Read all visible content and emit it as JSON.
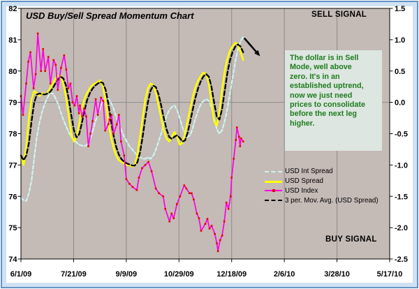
{
  "colors": {
    "frame_border": "#6493c6",
    "frame_band": "#cfe1f2",
    "plot_background": "#c4bab6",
    "gridline": "#8c8c8c",
    "axis": "#000000",
    "note_background": "#dde6e0",
    "note_text": "#1e7c1e",
    "signal_text": "#000000"
  },
  "chart_data": {
    "type": "line",
    "title": "USD Buy/Sell Spread Momentum Chart",
    "x_axis": {
      "labels": [
        "6/1/09",
        "7/21/09",
        "9/9/09",
        "10/29/09",
        "12/18/09",
        "2/6/10",
        "3/28/10",
        "5/17/10"
      ],
      "total_days": 350,
      "days_per_tick": 50
    },
    "y_axis_left": {
      "min": 74,
      "max": 82,
      "ticks": [
        "82",
        "81",
        "80",
        "79",
        "78",
        "77",
        "76",
        "75",
        "74"
      ]
    },
    "y_axis_right": {
      "min": -2.5,
      "max": 1.5,
      "ticks": [
        "1.5",
        "1.0",
        "0.5",
        "0.0",
        "-0.5",
        "-1.0",
        "-1.5",
        "-2.0",
        "-2.5"
      ],
      "zero_gridline": true
    },
    "grid": {
      "vertical": true,
      "horizontal": false
    },
    "legend": {
      "position": "middle-right"
    },
    "series": [
      {
        "name": "USD Int Spread",
        "axis": "left",
        "style": "dashed",
        "color": "#ccf5f0",
        "day_start": 0,
        "day_step": 2.512,
        "values": [
          75.95,
          75.88,
          75.85,
          76.1,
          76.5,
          77.2,
          77.9,
          78.35,
          78.7,
          78.95,
          79.15,
          79.3,
          79.28,
          79.15,
          78.95,
          78.7,
          78.45,
          78.25,
          78.05,
          77.9,
          77.8,
          77.72,
          77.65,
          77.62,
          77.6,
          77.65,
          77.8,
          78.05,
          78.35,
          78.6,
          78.85,
          79.05,
          79.15,
          79.12,
          79.0,
          78.8,
          78.55,
          78.3,
          78.1,
          77.9,
          77.75,
          77.6,
          77.5,
          77.4,
          77.3,
          77.25,
          77.2,
          77.2,
          77.25,
          77.2,
          77.3,
          77.5,
          77.75,
          78.0,
          78.3,
          78.55,
          78.75,
          78.85,
          78.9,
          78.75,
          78.5,
          78.2,
          78.0,
          77.9,
          77.95,
          78.2,
          78.5,
          78.75,
          78.95,
          79.05,
          79.1,
          79.05,
          78.85,
          78.5,
          78.15,
          78.0,
          78.1,
          78.4,
          78.8,
          79.3,
          79.8,
          80.3,
          80.7,
          80.95,
          81.1
        ]
      },
      {
        "name": "USD Spread",
        "axis": "left",
        "style": "solid",
        "color": "#ffff00",
        "day_start": 0,
        "day_step": 2.512,
        "values": [
          77.3,
          77.0,
          77.6,
          78.5,
          79.1,
          79.35,
          79.3,
          79.2,
          79.3,
          79.25,
          79.3,
          79.45,
          79.6,
          79.75,
          79.85,
          79.85,
          79.6,
          79.2,
          78.6,
          78.0,
          77.75,
          77.9,
          78.3,
          78.8,
          79.1,
          79.3,
          79.45,
          79.55,
          79.6,
          79.65,
          79.7,
          79.5,
          79.0,
          78.4,
          77.9,
          77.55,
          77.3,
          77.15,
          77.1,
          77.05,
          77.0,
          77.0,
          76.95,
          77.0,
          77.3,
          77.9,
          78.5,
          79.1,
          79.45,
          79.6,
          79.55,
          79.3,
          78.9,
          78.5,
          78.1,
          77.85,
          77.75,
          77.9,
          78.05,
          77.9,
          77.65,
          77.7,
          78.0,
          78.4,
          78.8,
          79.2,
          79.5,
          79.7,
          79.85,
          79.95,
          79.9,
          79.6,
          79.0,
          78.4,
          78.25,
          78.7,
          79.4,
          80.0,
          80.4,
          80.65,
          80.8,
          80.9,
          80.85,
          80.6,
          80.35
        ]
      },
      {
        "name": "USD Index",
        "axis": "left",
        "style": "solid-with-markers",
        "color": "#ff00dd",
        "marker_color": "#e60000",
        "points": [
          [
            0,
            79.2
          ],
          [
            2,
            78.6
          ],
          [
            5,
            79.6
          ],
          [
            7,
            80.3
          ],
          [
            9,
            80.6
          ],
          [
            12,
            79.45
          ],
          [
            14,
            79.9
          ],
          [
            16,
            81.2
          ],
          [
            19,
            80.0
          ],
          [
            21,
            80.7
          ],
          [
            23,
            80.0
          ],
          [
            26,
            80.45
          ],
          [
            28,
            79.6
          ],
          [
            31,
            80.35
          ],
          [
            33,
            80.2
          ],
          [
            35,
            79.4
          ],
          [
            38,
            80.1
          ],
          [
            41,
            80.5
          ],
          [
            43,
            80.05
          ],
          [
            45,
            79.45
          ],
          [
            47,
            79.6
          ],
          [
            49,
            79.0
          ],
          [
            51,
            78.9
          ],
          [
            53,
            79.2
          ],
          [
            55,
            78.65
          ],
          [
            56,
            78.9
          ],
          [
            58,
            78.55
          ],
          [
            60,
            78.8
          ],
          [
            62,
            78.55
          ],
          [
            64,
            77.6
          ],
          [
            66,
            78.0
          ],
          [
            68,
            78.4
          ],
          [
            71,
            79.1
          ],
          [
            73,
            78.6
          ],
          [
            76,
            79.15
          ],
          [
            78,
            79.05
          ],
          [
            80,
            78.1
          ],
          [
            83,
            78.3
          ],
          [
            84,
            78.45
          ],
          [
            86,
            78.6
          ],
          [
            88,
            78.0
          ],
          [
            91,
            78.3
          ],
          [
            93,
            78.6
          ],
          [
            95,
            77.75
          ],
          [
            98,
            77.3
          ],
          [
            100,
            76.55
          ],
          [
            103,
            76.4
          ],
          [
            106,
            76.3
          ],
          [
            110,
            76.2
          ],
          [
            112,
            76.6
          ],
          [
            115,
            76.9
          ],
          [
            118,
            77.0
          ],
          [
            121,
            77.1
          ],
          [
            124,
            76.8
          ],
          [
            128,
            76.25
          ],
          [
            131,
            76.1
          ],
          [
            135,
            76.0
          ],
          [
            137,
            75.6
          ],
          [
            141,
            75.2
          ],
          [
            143,
            75.45
          ],
          [
            145,
            75.3
          ],
          [
            148,
            75.75
          ],
          [
            151,
            76.0
          ],
          [
            155,
            76.35
          ],
          [
            157,
            76.25
          ],
          [
            160,
            76.1
          ],
          [
            162,
            76.1
          ],
          [
            164,
            75.9
          ],
          [
            167,
            75.45
          ],
          [
            169,
            75.3
          ],
          [
            171,
            74.9
          ],
          [
            175,
            75.12
          ],
          [
            177,
            75.28
          ],
          [
            179,
            74.97
          ],
          [
            181,
            75.06
          ],
          [
            184,
            74.8
          ],
          [
            186,
            74.5
          ],
          [
            187,
            74.25
          ],
          [
            189,
            74.6
          ],
          [
            191,
            74.75
          ],
          [
            193,
            75.2
          ],
          [
            195,
            75.8
          ],
          [
            197,
            75.6
          ],
          [
            199,
            76.0
          ],
          [
            200,
            76.6
          ],
          [
            202,
            77.2
          ],
          [
            204,
            77.8
          ],
          [
            205,
            78.2
          ],
          [
            207,
            77.9
          ],
          [
            208,
            77.6
          ],
          [
            209,
            77.85
          ],
          [
            211,
            77.75
          ]
        ]
      },
      {
        "name": "3 per. Mov. Avg. (USD Spread)",
        "axis": "left",
        "style": "dashed",
        "color": "#000000",
        "derived_from": "USD Spread",
        "window": 3
      }
    ],
    "annotations": {
      "sell_signal": "SELL SIGNAL",
      "buy_signal": "BUY SIGNAL",
      "note_lines": [
        "The dollar is in Sell",
        "Mode, well above",
        "zero.  It's in an",
        "established uptrend,",
        "now we just need",
        "prices to consolidate",
        "before the next leg",
        "higher."
      ],
      "arrow": {
        "from": [
          212,
          81.05
        ],
        "to": [
          225,
          80.55
        ]
      }
    }
  }
}
